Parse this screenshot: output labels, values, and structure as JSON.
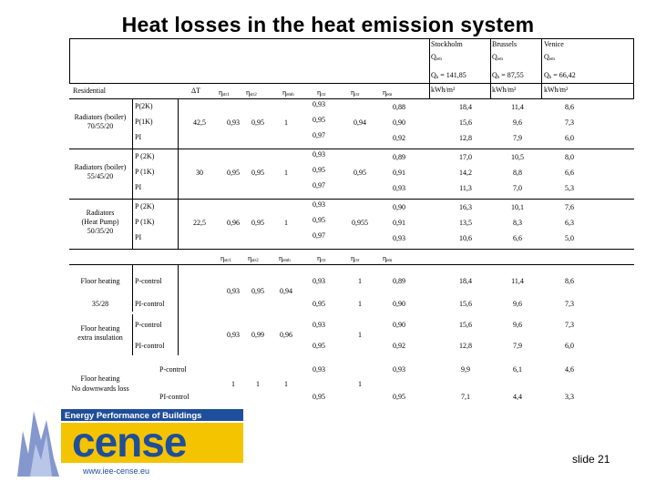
{
  "title": "Heat losses in the heat emission system",
  "slide_label": "slide 21",
  "cities": [
    {
      "name": "Stockholm",
      "q_label": "Q",
      "q_sub": "em",
      "qh": "Q",
      "qh_sub": "h",
      "qh_val": " = 141,85",
      "unit": "kWh/m²"
    },
    {
      "name": "Brussels",
      "q_label": "Q",
      "q_sub": "em",
      "qh": "Q",
      "qh_sub": "h",
      "qh_val": " = 87,55",
      "unit": "kWh/m²"
    },
    {
      "name": "Venice",
      "q_label": "Q",
      "q_sub": "em",
      "qh": "Q",
      "qh_sub": "h",
      "qh_val": " = 66,42",
      "unit": "kWh/m²"
    }
  ],
  "header1": {
    "residential": "Residential",
    "delta_t": "ΔT",
    "cols": [
      {
        "sym": "η",
        "sub": "str1"
      },
      {
        "sym": "η",
        "sub": "str2"
      },
      {
        "sym": "η",
        "sub": "emb"
      },
      {
        "sym": "η",
        "sub": "ctr"
      },
      {
        "sym": "η",
        "sub": "ctr"
      },
      {
        "sym": "η",
        "sub": "em"
      }
    ]
  },
  "radiator_groups": [
    {
      "name_lines": [
        "Radiators (boiler)",
        "70/55/20"
      ],
      "delta_t": "42,5",
      "str1": "0,93",
      "str2": "0,95",
      "emb": "1",
      "ctr2": "0,94",
      "rows": [
        {
          "control": "P(2K)",
          "ctr": "0,93",
          "em": "0,88",
          "v": [
            "18,4",
            "11,4",
            "8,6"
          ]
        },
        {
          "control": "P(1K)",
          "ctr": "0,95",
          "em": "0,90",
          "v": [
            "15,6",
            "9,6",
            "7,3"
          ]
        },
        {
          "control": "PI",
          "ctr": "0,97",
          "em": "0,92",
          "v": [
            "12,8",
            "7,9",
            "6,0"
          ]
        }
      ]
    },
    {
      "name_lines": [
        "Radiators (boiler)",
        "55/45/20"
      ],
      "delta_t": "30",
      "str1": "0,95",
      "str2": "0,95",
      "emb": "1",
      "ctr2": "0,95",
      "rows": [
        {
          "control": "P (2K)",
          "ctr": "0,93",
          "em": "0,89",
          "v": [
            "17,0",
            "10,5",
            "8,0"
          ]
        },
        {
          "control": "P (1K)",
          "ctr": "0,95",
          "em": "0,91",
          "v": [
            "14,2",
            "8,8",
            "6,6"
          ]
        },
        {
          "control": "PI",
          "ctr": "0,97",
          "em": "0,93",
          "v": [
            "11,3",
            "7,0",
            "5,3"
          ]
        }
      ]
    },
    {
      "name_lines": [
        "Radiators",
        "(Heat Pump)",
        "50/35/20"
      ],
      "delta_t": "22,5",
      "str1": "0,96",
      "str2": "0,95",
      "emb": "1",
      "ctr2": "0,955",
      "rows": [
        {
          "control": "P (2K)",
          "ctr": "0,93",
          "em": "0,90",
          "v": [
            "16,3",
            "10,1",
            "7,6"
          ]
        },
        {
          "control": "P (1K)",
          "ctr": "0,95",
          "em": "0,91",
          "v": [
            "13,5",
            "8,3",
            "6,3"
          ]
        },
        {
          "control": "PI",
          "ctr": "0,97",
          "em": "0,93",
          "v": [
            "10,6",
            "6,6",
            "5,0"
          ]
        }
      ]
    }
  ],
  "header2": {
    "cols": [
      {
        "sym": "η",
        "sub": "str1"
      },
      {
        "sym": "η",
        "sub": "str2"
      },
      {
        "sym": "η",
        "sub": "emb"
      },
      {
        "sym": "η",
        "sub": "ctr"
      },
      {
        "sym": "η",
        "sub": "ctr"
      },
      {
        "sym": "η",
        "sub": "em"
      }
    ]
  },
  "floor_a": {
    "name": "Floor heating",
    "temps": "35/28",
    "str1": "0,93",
    "str2": "0,95",
    "emb": "0,94",
    "rows": [
      {
        "control": "P-control",
        "ctr": "0,93",
        "ctr2": "1",
        "em": "0,89",
        "v": [
          "18,4",
          "11,4",
          "8,6"
        ]
      },
      {
        "control": "PI-control",
        "ctr": "0,95",
        "ctr2": "1",
        "em": "0,90",
        "v": [
          "15,6",
          "9,6",
          "7,3"
        ]
      }
    ]
  },
  "floor_b": {
    "name_lines": [
      "Floor heating",
      "extra insulation"
    ],
    "str1": "0,93",
    "str2": "0,99",
    "emb": "0,96",
    "ctr2": "1",
    "rows": [
      {
        "control": "P-control",
        "ctr": "0,93",
        "em": "0,90",
        "v": [
          "15,6",
          "9,6",
          "7,3"
        ]
      },
      {
        "control": "PI-control",
        "ctr": "0,95",
        "em": "0,92",
        "v": [
          "12,8",
          "7,9",
          "6,0"
        ]
      }
    ]
  },
  "floor_c": {
    "name_lines": [
      "Floor heating",
      "No downwards loss"
    ],
    "str1": "1",
    "str2": "1",
    "emb": "1",
    "ctr2": "1",
    "rows": [
      {
        "control": "P-control",
        "ctr": "0,93",
        "em": "0,93",
        "v": [
          "9,9",
          "6,1",
          "4,6"
        ]
      },
      {
        "control": "PI-control",
        "ctr": "0,95",
        "em": "0,95",
        "v": [
          "7,1",
          "4,4",
          "3,3"
        ]
      }
    ]
  },
  "logo": {
    "top_text": "Energy Performance of Buildings",
    "brand": "cense",
    "url": "www.iee-cense.eu",
    "accent": "#F5C400",
    "blue": "#1F4E9A"
  }
}
